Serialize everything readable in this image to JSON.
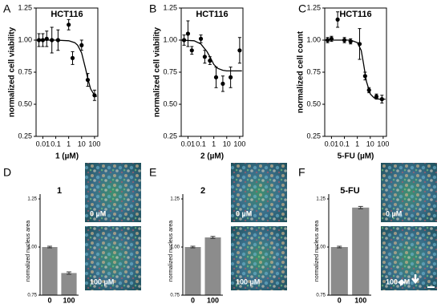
{
  "chart_data": [
    {
      "type": "scatter",
      "panel": "A",
      "title": "HCT116",
      "x_label": "1 (µM)",
      "y_label": "normalized cell viability",
      "log_x": true,
      "color": "#000000",
      "x": [
        0.005,
        0.01,
        0.02,
        0.05,
        0.15,
        1,
        2,
        10,
        30,
        100
      ],
      "values": [
        1.0,
        1.0,
        1.01,
        1.0,
        1.0,
        1.12,
        0.86,
        0.96,
        0.69,
        0.57
      ],
      "errors": [
        0.05,
        0.05,
        0.06,
        0.1,
        0.08,
        0.04,
        0.05,
        0.04,
        0.05,
        0.04
      ],
      "fit": {
        "x": [
          0.003,
          0.1,
          1,
          3,
          5,
          10,
          20,
          30,
          50,
          100,
          150
        ],
        "values": [
          1.0,
          1.0,
          0.995,
          0.98,
          0.96,
          0.9,
          0.78,
          0.7,
          0.62,
          0.57,
          0.56
        ]
      },
      "xlim": [
        0.003,
        180
      ],
      "xticks": [
        0.01,
        0.1,
        1,
        10,
        100
      ],
      "ylim": [
        0.25,
        1.25
      ],
      "yticks": [
        0.25,
        {
          "value": 0.5,
          "label": "0.50"
        },
        0.75,
        {
          "value": 1,
          "label": "1.00"
        },
        1.25
      ]
    },
    {
      "type": "scatter",
      "panel": "B",
      "title": "HCT116",
      "x_label": "2 (µM)",
      "y_label": "normalized cell viability",
      "log_x": true,
      "color": "#000000",
      "x": [
        0.005,
        0.01,
        0.02,
        0.1,
        0.2,
        0.5,
        1.5,
        5,
        20,
        100
      ],
      "values": [
        1.0,
        1.05,
        0.92,
        1.01,
        0.87,
        0.84,
        0.71,
        0.66,
        0.71,
        0.92
      ],
      "errors": [
        0.04,
        0.1,
        0.03,
        0.03,
        0.05,
        0.03,
        0.08,
        0.06,
        0.08,
        0.1
      ],
      "fit": {
        "x": [
          0.003,
          0.03,
          0.1,
          0.3,
          0.5,
          1,
          2,
          5,
          10,
          150
        ],
        "values": [
          1.0,
          0.995,
          0.97,
          0.91,
          0.87,
          0.81,
          0.78,
          0.765,
          0.76,
          0.76
        ]
      },
      "xlim": [
        0.003,
        180
      ],
      "xticks": [
        0.01,
        0.1,
        1,
        10,
        100
      ],
      "ylim": [
        0.25,
        1.25
      ],
      "yticks": [
        0.25,
        {
          "value": 0.5,
          "label": "0.50"
        },
        0.75,
        {
          "value": 1,
          "label": "1.00"
        },
        1.25
      ]
    },
    {
      "type": "scatter",
      "panel": "C",
      "title": "HCT116",
      "x_label": "5-FU (µM)",
      "y_label": "normalized cell count",
      "log_x": true,
      "color": "#000000",
      "x": [
        0.005,
        0.01,
        0.03,
        0.1,
        0.3,
        1.5,
        4,
        8,
        30,
        80
      ],
      "values": [
        1.0,
        1.01,
        1.16,
        1.0,
        0.99,
        0.97,
        0.72,
        0.61,
        0.56,
        0.54
      ],
      "errors": [
        0.02,
        0.02,
        0.06,
        0.02,
        0.02,
        0.12,
        0.03,
        0.02,
        0.02,
        0.03
      ],
      "fit": {
        "x": [
          0.003,
          0.3,
          1,
          2,
          3,
          5,
          10,
          20,
          50,
          150
        ],
        "values": [
          1.0,
          1.0,
          0.98,
          0.92,
          0.82,
          0.68,
          0.58,
          0.55,
          0.54,
          0.54
        ]
      },
      "xlim": [
        0.003,
        180
      ],
      "xticks": [
        0.01,
        0.1,
        1,
        10,
        100
      ],
      "ylim": [
        0.25,
        1.25
      ],
      "yticks": [
        0.25,
        {
          "value": 0.5,
          "label": "0.50"
        },
        0.75,
        {
          "value": 1,
          "label": "1.00"
        },
        1.25
      ]
    },
    {
      "type": "bar",
      "panel": "D",
      "title": "1",
      "y_label": "normalized nucleus area",
      "color": "#8c8c8c",
      "categories": [
        "0",
        "100"
      ],
      "values": [
        1.0,
        0.865
      ],
      "errors": [
        0.004,
        0.006
      ],
      "ylim": [
        0.75,
        1.25
      ],
      "yticks": [
        0.75,
        {
          "value": 1,
          "label": "1.00"
        },
        1.25
      ],
      "images": [
        "0 µM",
        "100 µM"
      ]
    },
    {
      "type": "bar",
      "panel": "E",
      "title": "2",
      "y_label": "normalized nucleus area",
      "color": "#8c8c8c",
      "categories": [
        "0",
        "100"
      ],
      "values": [
        1.0,
        1.05
      ],
      "errors": [
        0.004,
        0.005
      ],
      "ylim": [
        0.75,
        1.25
      ],
      "yticks": [
        0.75,
        {
          "value": 1,
          "label": "1.00"
        },
        1.25
      ],
      "images": [
        "0 µM",
        "100 µM"
      ]
    },
    {
      "type": "bar",
      "panel": "F",
      "title": "5-FU",
      "y_label": "normalized nucleus area",
      "color": "#8c8c8c",
      "categories": [
        "0",
        "100"
      ],
      "values": [
        1.0,
        1.205
      ],
      "errors": [
        0.004,
        0.006
      ],
      "ylim": [
        0.75,
        1.25
      ],
      "yticks": [
        0.75,
        {
          "value": 1,
          "label": "1.00"
        },
        1.25
      ],
      "images": [
        "0 µM",
        "100 µM"
      ]
    }
  ]
}
